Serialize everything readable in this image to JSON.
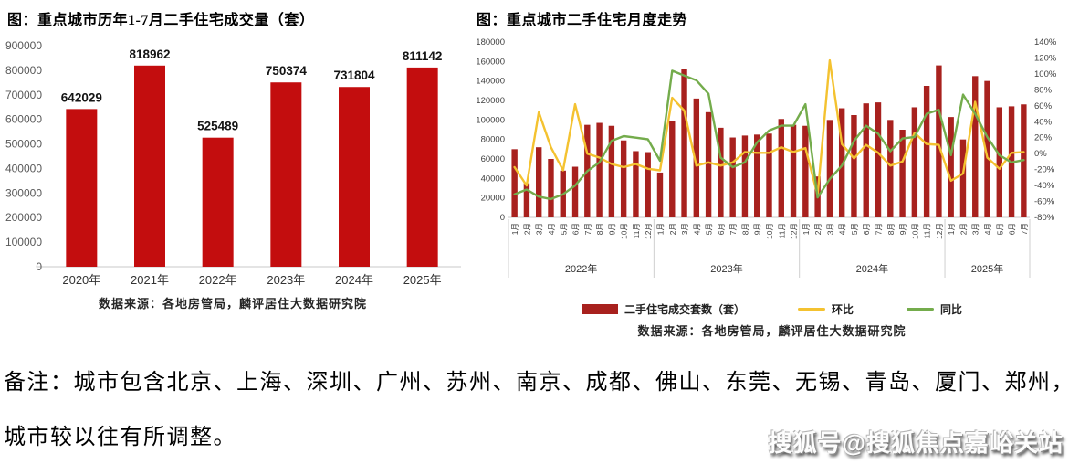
{
  "page": {
    "note_line1": "备注：城市包含北京、上海、深圳、广州、苏州、南京、成都、佛山、东莞、无锡、青岛、厦门、郑州，",
    "note_line2": "城市较以往有所调整。",
    "watermark": "搜狐号@搜狐焦点嘉峪关站"
  },
  "chart_data": [
    {
      "type": "bar",
      "title": "图：重点城市历年1-7月二手住宅成交量（套）",
      "categories": [
        "2020年",
        "2021年",
        "2022年",
        "2023年",
        "2024年",
        "2025年"
      ],
      "values": [
        642029,
        818962,
        525489,
        750374,
        731804,
        811142
      ],
      "ylim": [
        0,
        900000
      ],
      "ytick_step": 100000,
      "bar_color": "#C30D0E",
      "grid": false,
      "value_labels": true,
      "source": "数据来源：各地房管局，麟评居住大数据研究院"
    },
    {
      "type": "bar+line",
      "title": "图：重点城市二手住宅月度走势",
      "year_groups": [
        {
          "label": "2022年",
          "count": 12
        },
        {
          "label": "2023年",
          "count": 12
        },
        {
          "label": "2024年",
          "count": 12
        },
        {
          "label": "2025年",
          "count": 7
        }
      ],
      "month_labels": [
        "1月",
        "2月",
        "3月",
        "4月",
        "5月",
        "6月",
        "7月",
        "8月",
        "9月",
        "10月",
        "11月",
        "12月",
        "1月",
        "2月",
        "3月",
        "4月",
        "5月",
        "6月",
        "7月",
        "8月",
        "9月",
        "10月",
        "11月",
        "12月",
        "1月",
        "2月",
        "3月",
        "4月",
        "5月",
        "6月",
        "7月",
        "8月",
        "9月",
        "10月",
        "11月",
        "12月",
        "1月",
        "2月",
        "3月",
        "4月",
        "5月",
        "6月",
        "7月"
      ],
      "left_axis": {
        "lim": [
          0,
          180000
        ],
        "step": 20000
      },
      "right_axis": {
        "lim": [
          -80,
          140
        ],
        "step": 20,
        "suffix": "%"
      },
      "series": [
        {
          "name": "二手住宅成交套数（套）",
          "type": "bar",
          "axis": "left",
          "color": "#A8211E",
          "values": [
            70000,
            35000,
            72000,
            60000,
            48000,
            52000,
            95000,
            97000,
            94000,
            79000,
            68000,
            67000,
            46000,
            99000,
            152000,
            122000,
            108000,
            92000,
            82000,
            84000,
            85000,
            86000,
            101000,
            95000,
            94000,
            42000,
            100000,
            112000,
            105000,
            117000,
            118000,
            100000,
            90000,
            113000,
            135000,
            156000,
            103000,
            80000,
            145000,
            140000,
            113000,
            114000,
            116000
          ]
        },
        {
          "name": "环比",
          "type": "line",
          "axis": "right",
          "color": "#F4C230",
          "values": [
            -17,
            -40,
            52,
            8,
            -21,
            62,
            0,
            -5,
            -13,
            -17,
            -13,
            -19,
            -21,
            70,
            54,
            -15,
            -11,
            -15,
            -11,
            2,
            1,
            1,
            8,
            2,
            7,
            -52,
            117,
            12,
            -6,
            11,
            1,
            -15,
            -10,
            26,
            12,
            11,
            -34,
            -25,
            65,
            -5,
            -19,
            1,
            2
          ]
        },
        {
          "name": "同比",
          "type": "line",
          "axis": "right",
          "color": "#74AC4C",
          "values": [
            -51,
            -45,
            -54,
            -57,
            -51,
            -40,
            -22,
            -11,
            16,
            22,
            20,
            18,
            -9,
            104,
            98,
            92,
            75,
            -5,
            -17,
            -11,
            14,
            29,
            35,
            35,
            62,
            -55,
            -32,
            -15,
            16,
            35,
            25,
            3,
            19,
            21,
            50,
            55,
            -2,
            74,
            50,
            21,
            -2,
            -11,
            -8
          ]
        }
      ],
      "legend_position": "bottom",
      "source": "数据来源：各地房管局，麟评居住大数据研究院"
    }
  ]
}
